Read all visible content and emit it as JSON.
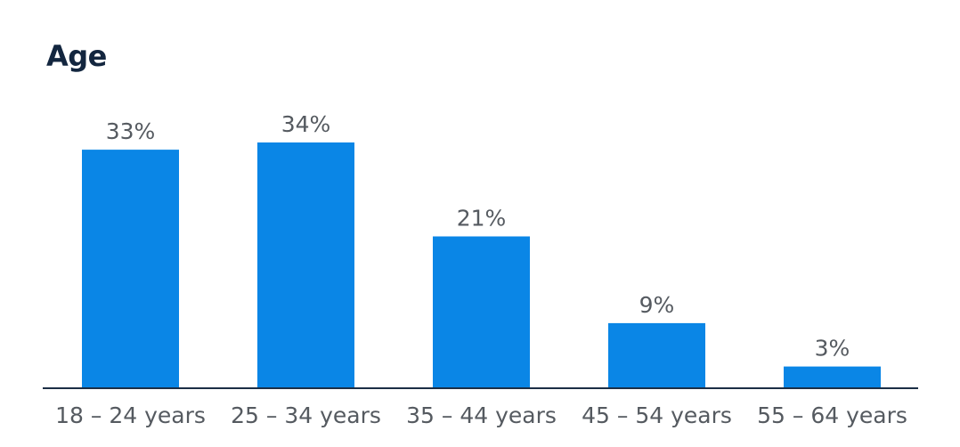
{
  "chart_data": {
    "type": "bar",
    "title": "Age",
    "categories": [
      "18 – 24 years",
      "25 – 34 years",
      "35 – 44 years",
      "45 – 54 years",
      "55 – 64 years"
    ],
    "values": [
      33,
      34,
      21,
      9,
      3
    ],
    "value_labels": [
      "33%",
      "34%",
      "21%",
      "9%",
      "3%"
    ],
    "ylim": [
      0,
      34
    ],
    "grid": false,
    "color": "#0a86e6"
  }
}
